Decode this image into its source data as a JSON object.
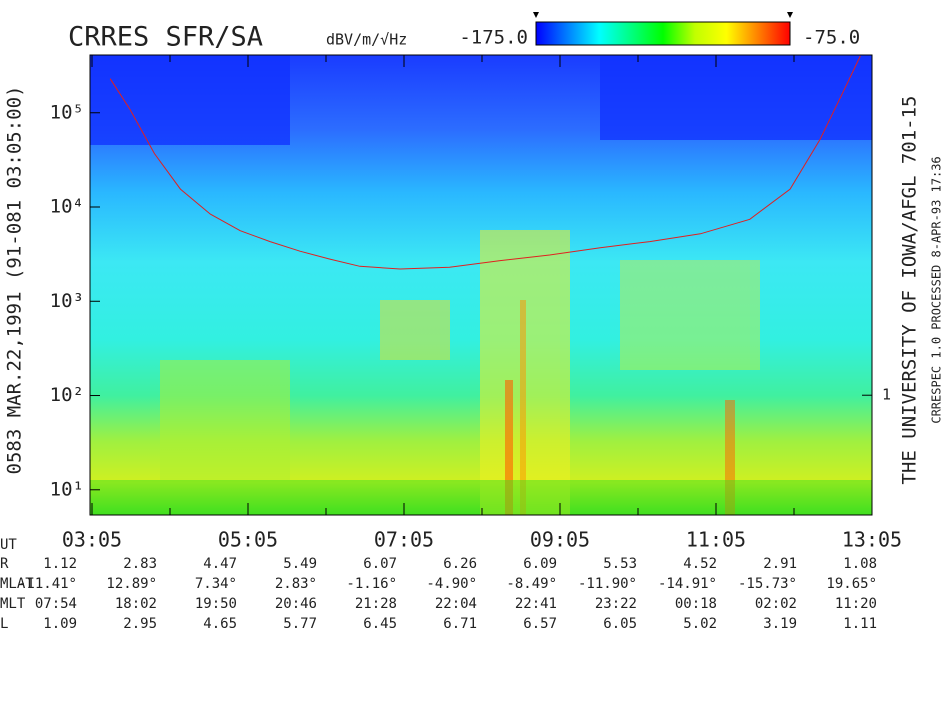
{
  "chart_data": {
    "type": "spectrogram",
    "title": "CRRES SFR/SA",
    "side_labels": [
      "0583   MAR.22,1991   (91-081 03:05:00)",
      "THE UNIVERSITY OF IOWA/AFGL 701-15",
      "CRRESPEC 1.0   PROCESSED  8-APR-93  17:36"
    ],
    "xlim": [
      185,
      785
    ],
    "xticks": [
      {
        "value": 185,
        "label": "03:05"
      },
      {
        "value": 305,
        "label": "05:05"
      },
      {
        "value": 425,
        "label": "07:05"
      },
      {
        "value": 545,
        "label": "09:05"
      },
      {
        "value": 665,
        "label": "11:05"
      },
      {
        "value": 785,
        "label": "13:05"
      }
    ],
    "xminorticks": [
      245,
      365,
      485,
      605,
      725
    ],
    "log_y": true,
    "ylim": [
      5.4,
      410000
    ],
    "yticks": [
      {
        "value": 10,
        "label": "10¹"
      },
      {
        "value": 100,
        "label": "10²"
      },
      {
        "value": 1000,
        "label": "10³"
      },
      {
        "value": 10000,
        "label": "10⁴"
      },
      {
        "value": 100000,
        "label": "10⁵"
      }
    ],
    "y2lim": [
      0.053,
      4200
    ],
    "y2ticks": [
      1
    ],
    "zlabel": "dBV/m/√Hz",
    "zlim": [
      -175,
      -75
    ],
    "zticks": [
      {
        "value": -175,
        "label": "-175.0"
      },
      {
        "value": -75,
        "label": "-75.0"
      }
    ],
    "colormap": [
      "#0000ff",
      "#0080ff",
      "#00ffff",
      "#00ff80",
      "#00ff00",
      "#c0ff00",
      "#ffff00",
      "#ff8000",
      "#ff0000"
    ],
    "series": [
      {
        "color": "#e02020",
        "x": [
          199,
          214,
          233,
          253,
          276,
          299,
          322,
          345,
          368,
          391,
          422,
          460,
          499,
          537,
          576,
          614,
          653,
          691,
          722,
          745,
          764,
          776
        ],
        "values": [
          230000,
          110000,
          37000,
          15500,
          8400,
          5600,
          4300,
          3400,
          2800,
          2350,
          2200,
          2300,
          2700,
          3100,
          3700,
          4300,
          5200,
          7400,
          15500,
          52000,
          180000,
          400000
        ]
      }
    ],
    "ephemeris": {
      "time_label": "UT",
      "rows": [
        {
          "name": "R",
          "values": [
            "1.12",
            "2.83",
            "4.47",
            "5.49",
            "6.07",
            "6.26",
            "6.09",
            "5.53",
            "4.52",
            "2.91",
            "1.08"
          ]
        },
        {
          "name": "MLAT",
          "values": [
            "-11.41°",
            "12.89°",
            "7.34°",
            "2.83°",
            "-1.16°",
            "-4.90°",
            "-8.49°",
            "-11.90°",
            "-14.91°",
            "-15.73°",
            "19.65°"
          ]
        },
        {
          "name": "MLT",
          "values": [
            "07:54",
            "18:02",
            "19:50",
            "20:46",
            "21:28",
            "22:04",
            "22:41",
            "23:22",
            "00:18",
            "02:02",
            "11:20"
          ]
        },
        {
          "name": "L",
          "values": [
            "1.09",
            "2.95",
            "4.65",
            "5.77",
            "6.45",
            "6.71",
            "6.57",
            "6.05",
            "5.02",
            "3.19",
            "1.11"
          ]
        }
      ]
    }
  }
}
